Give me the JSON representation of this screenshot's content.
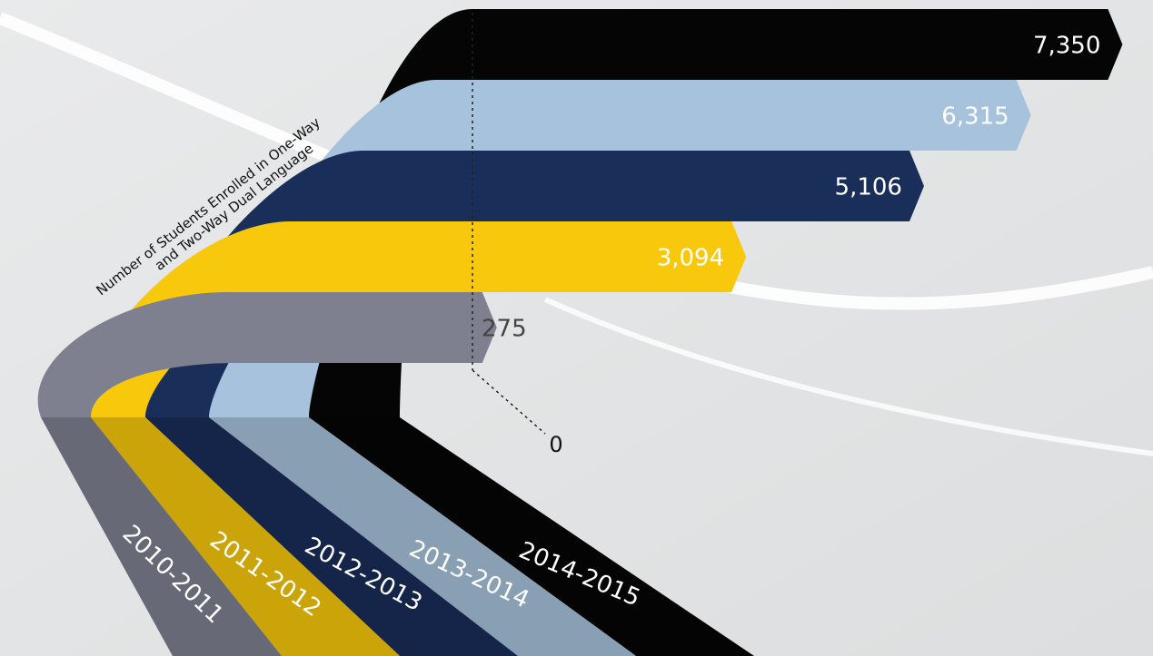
{
  "chart_data": {
    "type": "ribbon-bar",
    "xlabel": [
      "Number of Students Enrolled in One-Way",
      "and Two-Way Dual Language"
    ],
    "categories": [
      "2010-2011",
      "2011-2012",
      "2012-2013",
      "2013-2014",
      "2014-2015"
    ],
    "values": [
      275,
      3094,
      5106,
      6315,
      7350
    ],
    "value_labels": [
      "275",
      "3,094",
      "5,106",
      "6,315",
      "7,350"
    ],
    "colors": [
      "#7e8090",
      "#f8c80c",
      "#1a2e5a",
      "#a6c2dc",
      "#050505"
    ],
    "xlim": [
      0,
      7500
    ],
    "xticks": [
      0
    ]
  }
}
